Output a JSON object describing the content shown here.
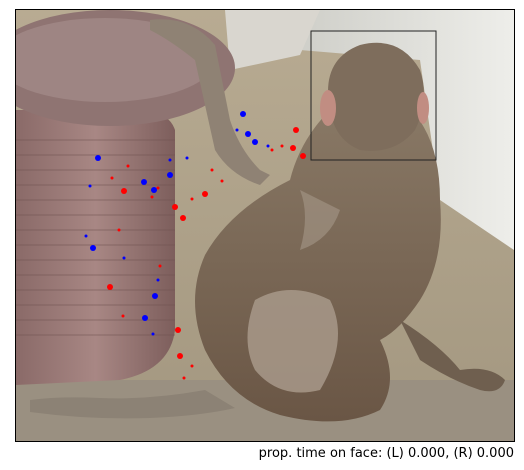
{
  "caption": "prop. time on face: (L) 0.000, (R) 0.000",
  "colors": {
    "left_eye_samples": "#0000ff",
    "right_eye_samples": "#ff0000",
    "roi_box": "#222222",
    "frame": "#000000"
  },
  "icons": [
    "monkey-photo",
    "gaze-overlay"
  ]
}
